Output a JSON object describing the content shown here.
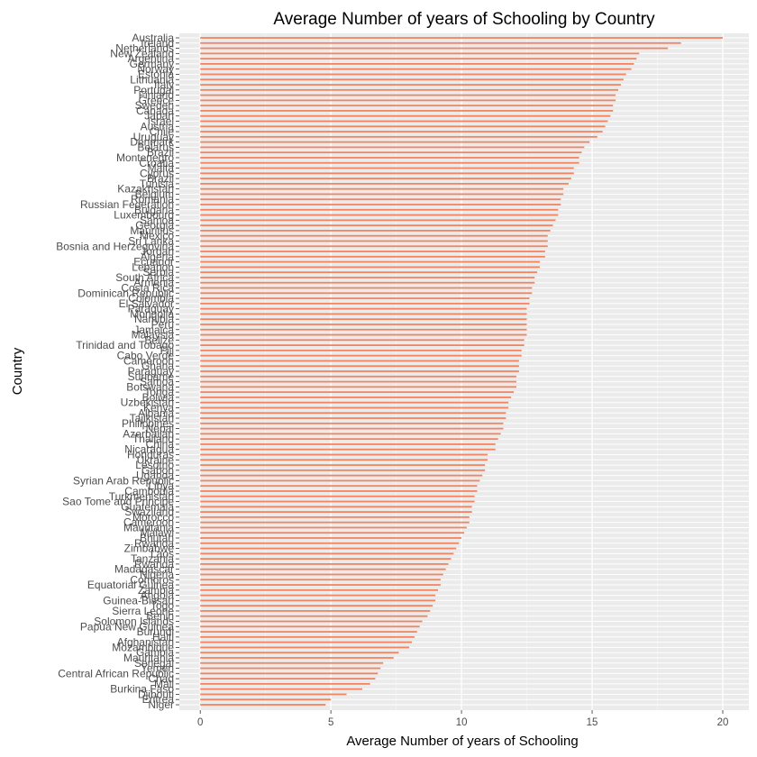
{
  "chart_data": {
    "type": "bar",
    "orientation": "horizontal",
    "title": "Average Number of years of Schooling by Country",
    "xlabel": "Average Number of years of Schooling",
    "ylabel": "Country",
    "xlim": [
      -0.8,
      21
    ],
    "xticks": [
      0,
      5,
      10,
      15,
      20
    ],
    "grid": true,
    "legend": "none",
    "bar_color": "#f4845f",
    "panel_color": "#ebebeb",
    "categories": [
      "Australia",
      "Ireland",
      "Netherlands",
      "New Zealand",
      "Argentina",
      "Germany",
      "Norway",
      "Estonia",
      "Lithuania",
      "Italy",
      "Portugal",
      "Finland",
      "Greece",
      "Sweden",
      "Canada",
      "Japan",
      "Israel",
      "Austria",
      "Chile",
      "Uruguay",
      "Denmark",
      "Belarus",
      "Brazil",
      "Montenegro",
      "Croatia",
      "Malta",
      "Cyprus",
      "Brazil",
      "Tunisia",
      "Kazakhstan",
      "Belgium",
      "Romania",
      "Russian Federation",
      "Bulgaria",
      "Luxembourg",
      "Samoa",
      "Georgia",
      "Mauritius",
      "Mexico",
      "Sri Lanka",
      "Bosnia and Herzegovina",
      "Jordan",
      "Algeria",
      "Ecuador",
      "Lebanon",
      "Serbia",
      "South Africa",
      "Armenia",
      "Costa Rica",
      "Dominican Republic",
      "Colombia",
      "El Salvador",
      "Paraguay",
      "Mongolia",
      "Namibia",
      "Peru",
      "Jamaica",
      "Malaysia",
      "Belize",
      "Trinidad and Tobago",
      "Fiji",
      "Cabo Verde",
      "Cameroon",
      "Ghana",
      "Paraguay",
      "Suriname",
      "Samoa",
      "Botswana",
      "Tonga",
      "Bolivia",
      "Uzbekistan",
      "Kenya",
      "Albania",
      "Tajikistan",
      "Philippines",
      "Nepal",
      "Azerbaijan",
      "Thailand",
      "China",
      "Nicaragua",
      "Honduras",
      "Ukraine",
      "Lesotho",
      "Gabon",
      "Uganda",
      "Syrian Arab Republic",
      "Libya",
      "Cambodia",
      "Turkmenistan",
      "Sao Tome and Principe",
      "Guatemala",
      "Swaziland",
      "Morocco",
      "Cameroon",
      "Mauritania",
      "Malawi",
      "Bhutan",
      "Rwanda",
      "Zimbabwe",
      "Laos",
      "Tanzania",
      "Rwanda",
      "Madagascar",
      "Nigeria",
      "Comoros",
      "Equatorial Guinea",
      "Zambia",
      "Angola",
      "Guinea-Bissau",
      "Togo",
      "Sierra Leone",
      "Benin",
      "Solomon Islands",
      "Papua New Guinea",
      "Burundi",
      "Haiti",
      "Afghanistan",
      "Mozambique",
      "Gambia",
      "Mauritania",
      "Senegal",
      "Yemen",
      "Central African Republic",
      "Chad",
      "Mali",
      "Burkina Faso",
      "Djibouti",
      "Eritrea",
      "Niger"
    ],
    "values": [
      20.0,
      18.4,
      17.9,
      16.8,
      16.7,
      16.6,
      16.5,
      16.3,
      16.2,
      16.1,
      16.0,
      15.9,
      15.9,
      15.8,
      15.8,
      15.7,
      15.6,
      15.5,
      15.4,
      15.2,
      14.9,
      14.7,
      14.6,
      14.5,
      14.5,
      14.3,
      14.3,
      14.2,
      14.1,
      13.9,
      13.9,
      13.8,
      13.8,
      13.7,
      13.7,
      13.6,
      13.5,
      13.4,
      13.3,
      13.3,
      13.3,
      13.2,
      13.2,
      13.0,
      13.0,
      12.9,
      12.8,
      12.8,
      12.7,
      12.7,
      12.6,
      12.6,
      12.5,
      12.5,
      12.5,
      12.5,
      12.5,
      12.5,
      12.4,
      12.4,
      12.3,
      12.3,
      12.2,
      12.2,
      12.2,
      12.1,
      12.1,
      12.1,
      12.0,
      11.9,
      11.8,
      11.8,
      11.7,
      11.7,
      11.6,
      11.6,
      11.5,
      11.4,
      11.3,
      11.3,
      11.0,
      11.0,
      10.9,
      10.9,
      10.8,
      10.7,
      10.6,
      10.6,
      10.5,
      10.5,
      10.4,
      10.4,
      10.3,
      10.3,
      10.2,
      10.1,
      10.0,
      9.9,
      9.8,
      9.7,
      9.6,
      9.5,
      9.4,
      9.3,
      9.2,
      9.2,
      9.1,
      9.0,
      9.0,
      8.9,
      8.8,
      8.7,
      8.5,
      8.4,
      8.3,
      8.2,
      8.1,
      8.0,
      7.6,
      7.4,
      7.0,
      6.9,
      6.8,
      6.7,
      6.5,
      6.2,
      5.6,
      5.0,
      4.8
    ]
  }
}
